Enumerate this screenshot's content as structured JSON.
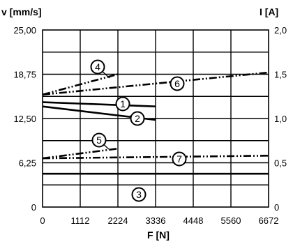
{
  "chart_data": {
    "type": "line",
    "xlabel": "F [N]",
    "ylabel_left": "v [mm/s]",
    "ylabel_right": "I [A]",
    "x_ticks": [
      "0",
      "1112",
      "2224",
      "3336",
      "4448",
      "5560",
      "6672"
    ],
    "y_left_ticks": [
      "0",
      "6,25",
      "12,50",
      "18,75",
      "25,00"
    ],
    "y_right_ticks": [
      "0",
      "0,5",
      "1,0",
      "1,5",
      "2,0"
    ],
    "xlim": [
      0,
      6672
    ],
    "ylim_left": [
      0,
      25
    ],
    "ylim_right": [
      0,
      2
    ],
    "grid": true,
    "series": [
      {
        "name": "1",
        "axis": "left",
        "style": "solid",
        "x": [
          0,
          3336
        ],
        "y": [
          14.8,
          14.2
        ]
      },
      {
        "name": "2",
        "axis": "left",
        "style": "solid",
        "x": [
          0,
          3336
        ],
        "y": [
          14.2,
          12.3
        ]
      },
      {
        "name": "3",
        "axis": "left",
        "style": "solid",
        "x": [
          0,
          6672
        ],
        "y": [
          4.7,
          4.7
        ]
      },
      {
        "name": "4",
        "axis": "right",
        "style": "dashdot",
        "x": [
          0,
          2224
        ],
        "y": [
          1.27,
          1.5
        ]
      },
      {
        "name": "5",
        "axis": "right",
        "style": "dashdot",
        "x": [
          0,
          2224
        ],
        "y": [
          0.55,
          0.66
        ]
      },
      {
        "name": "6",
        "axis": "right",
        "style": "dashdot",
        "x": [
          0,
          6672
        ],
        "y": [
          1.27,
          1.52
        ]
      },
      {
        "name": "7",
        "axis": "right",
        "style": "dashdot",
        "x": [
          0,
          6672
        ],
        "y": [
          0.55,
          0.58
        ]
      }
    ]
  }
}
